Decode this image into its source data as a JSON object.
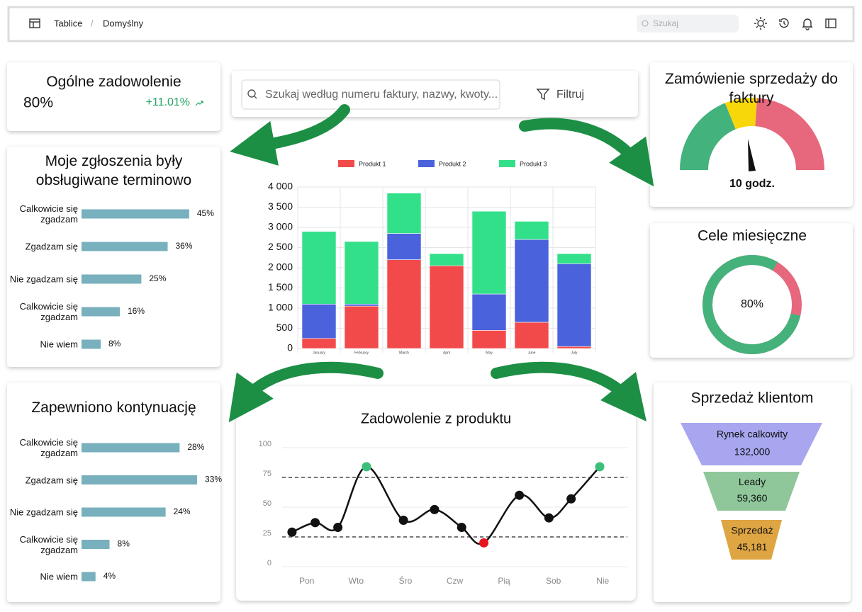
{
  "header": {
    "breadcrumb": [
      "Tablice",
      "Domyślny"
    ],
    "separator": "/",
    "search_placeholder": "Szukaj"
  },
  "invoice_search": {
    "placeholder": "Szukaj według numeru faktury, nazwy, kwoty...",
    "filter": "Filtruj"
  },
  "satisfaction_card": {
    "title": "Ogólne zadowolenie",
    "value": "80%",
    "change": "+11.01%"
  },
  "chart_data": [
    {
      "type": "hbar",
      "title": "Moje zgłoszenia były obsługiwane terminowo",
      "categories": [
        "Calkowicie się zgadzam",
        "Zgadzam się",
        "Nie zgadzam się",
        "Calkowicie się zgadzam",
        "Nie wiem"
      ],
      "values": [
        45,
        36,
        25,
        16,
        8
      ],
      "value_labels": [
        "45%",
        "36%",
        "25%",
        "16%",
        "8%"
      ],
      "color": "#78b0bd",
      "xlim": [
        0,
        48
      ]
    },
    {
      "type": "stacked_bar",
      "categories": [
        "January",
        "February",
        "March",
        "April",
        "May",
        "June",
        "July"
      ],
      "series": [
        {
          "name": "Produkt 1",
          "color": "#f24a4a",
          "values": [
            250,
            1050,
            2200,
            2050,
            450,
            650,
            50
          ]
        },
        {
          "name": "Produkt 2",
          "color": "#4a62dc",
          "values": [
            850,
            50,
            650,
            0,
            900,
            2050,
            2050
          ]
        },
        {
          "name": "Produkt 3",
          "color": "#33e08a",
          "values": [
            1800,
            1550,
            1000,
            300,
            2050,
            450,
            250
          ]
        }
      ],
      "ylim": [
        0,
        4000
      ],
      "yticks": [
        0,
        500,
        {
          "value": 1000,
          "label": "1 000"
        },
        {
          "value": 1500,
          "label": "1 500"
        },
        {
          "value": 2000,
          "label": "2 000"
        },
        {
          "value": 2500,
          "label": "2 500"
        },
        {
          "value": 3000,
          "label": "3 000"
        },
        {
          "value": 3500,
          "label": "3 500"
        },
        {
          "value": 4000,
          "label": "4 000"
        }
      ],
      "grid": true
    },
    {
      "type": "gauge",
      "title": "Zamówienie sprzedaży do faktury",
      "label": "10 godz.",
      "colors": [
        "#43b27c",
        "#f7d70a",
        "#e7687c"
      ]
    },
    {
      "type": "donut",
      "title": "Cele miesięczne",
      "values": [
        80
      ],
      "value_labels": [
        "80%"
      ],
      "colors": [
        "#45b27c",
        "#e7687c"
      ]
    },
    {
      "type": "hbar",
      "title": "Zapewniono kontynuację",
      "categories": [
        "Calkowicie się zgadzam",
        "Zgadzam się",
        "Nie zgadzam się",
        "Calkowicie się zgadzam",
        "Nie wiem"
      ],
      "values": [
        28,
        33,
        24,
        8,
        4
      ],
      "value_labels": [
        "28%",
        "33%",
        "24%",
        "8%",
        "4%"
      ],
      "color": "#78b0bd",
      "xlim": [
        0,
        34
      ]
    },
    {
      "type": "line",
      "title": "Zadowolenie z produktu",
      "x": [
        -0.3,
        0.17,
        0.63,
        1.21,
        1.96,
        2.59,
        3.14,
        3.59,
        4.31,
        4.91,
        5.36,
        5.94
      ],
      "values": [
        29,
        37,
        33,
        84,
        39,
        48,
        33,
        20,
        60,
        41,
        57,
        84
      ],
      "point_colors": [
        "#111111",
        "#111111",
        "#111111",
        "#3cbf7a",
        "#111111",
        "#111111",
        "#111111",
        "#e8141e",
        "#111111",
        "#111111",
        "#111111",
        "#3cbf7a"
      ],
      "color": "#111111",
      "xlim": [
        -0.5,
        6.5
      ],
      "xticks": [
        {
          "value": 0,
          "label": "Pon"
        },
        {
          "value": 1,
          "label": "Wto"
        },
        {
          "value": 2,
          "label": "Śro"
        },
        {
          "value": 3,
          "label": "Czw"
        },
        {
          "value": 4,
          "label": "Pią"
        },
        {
          "value": 5,
          "label": "Sob"
        },
        {
          "value": 6,
          "label": "Nie"
        }
      ],
      "ylim": [
        0,
        100
      ],
      "yticks": [
        0,
        25,
        50,
        75,
        100
      ],
      "reference_lines": [
        75,
        25
      ],
      "grid": true
    },
    {
      "type": "funnel",
      "title": "Sprzedaż klientom",
      "categories": [
        "Rynek calkowity",
        "Leady",
        "Sprzedaż"
      ],
      "values": [
        132000,
        59360,
        45181
      ],
      "value_labels": [
        "132,000",
        "59,360",
        "45,181"
      ],
      "colors": [
        "#a7a6ef",
        "#8fc79a",
        "#dea542"
      ]
    }
  ]
}
